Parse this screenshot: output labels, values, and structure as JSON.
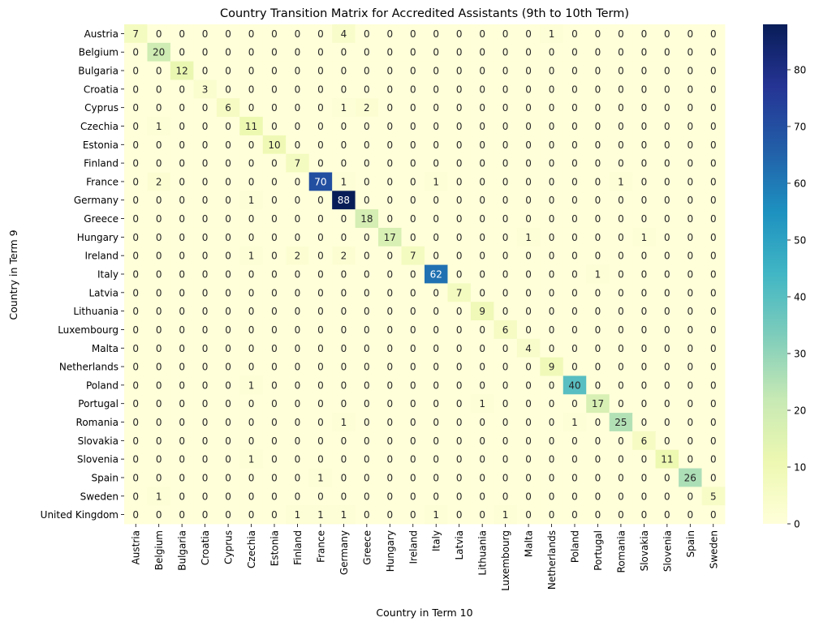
{
  "chart_data": {
    "type": "heatmap",
    "title": "Country Transition Matrix for Accredited Assistants (9th to 10th Term)",
    "xlabel": "Country in Term 10",
    "ylabel": "Country in Term 9",
    "x_categories": [
      "Austria",
      "Belgium",
      "Bulgaria",
      "Croatia",
      "Cyprus",
      "Czechia",
      "Estonia",
      "Finland",
      "France",
      "Germany",
      "Greece",
      "Hungary",
      "Ireland",
      "Italy",
      "Latvia",
      "Lithuania",
      "Luxembourg",
      "Malta",
      "Netherlands",
      "Poland",
      "Portugal",
      "Romania",
      "Slovakia",
      "Slovenia",
      "Spain",
      "Sweden"
    ],
    "y_categories": [
      "Austria",
      "Belgium",
      "Bulgaria",
      "Croatia",
      "Cyprus",
      "Czechia",
      "Estonia",
      "Finland",
      "France",
      "Germany",
      "Greece",
      "Hungary",
      "Ireland",
      "Italy",
      "Latvia",
      "Lithuania",
      "Luxembourg",
      "Malta",
      "Netherlands",
      "Poland",
      "Portugal",
      "Romania",
      "Slovakia",
      "Slovenia",
      "Spain",
      "Sweden",
      "United Kingdom"
    ],
    "values": [
      [
        7,
        0,
        0,
        0,
        0,
        0,
        0,
        0,
        0,
        4,
        0,
        0,
        0,
        0,
        0,
        0,
        0,
        0,
        1,
        0,
        0,
        0,
        0,
        0,
        0,
        0
      ],
      [
        0,
        20,
        0,
        0,
        0,
        0,
        0,
        0,
        0,
        0,
        0,
        0,
        0,
        0,
        0,
        0,
        0,
        0,
        0,
        0,
        0,
        0,
        0,
        0,
        0,
        0
      ],
      [
        0,
        0,
        12,
        0,
        0,
        0,
        0,
        0,
        0,
        0,
        0,
        0,
        0,
        0,
        0,
        0,
        0,
        0,
        0,
        0,
        0,
        0,
        0,
        0,
        0,
        0
      ],
      [
        0,
        0,
        0,
        3,
        0,
        0,
        0,
        0,
        0,
        0,
        0,
        0,
        0,
        0,
        0,
        0,
        0,
        0,
        0,
        0,
        0,
        0,
        0,
        0,
        0,
        0
      ],
      [
        0,
        0,
        0,
        0,
        6,
        0,
        0,
        0,
        0,
        1,
        2,
        0,
        0,
        0,
        0,
        0,
        0,
        0,
        0,
        0,
        0,
        0,
        0,
        0,
        0,
        0
      ],
      [
        0,
        1,
        0,
        0,
        0,
        11,
        0,
        0,
        0,
        0,
        0,
        0,
        0,
        0,
        0,
        0,
        0,
        0,
        0,
        0,
        0,
        0,
        0,
        0,
        0,
        0
      ],
      [
        0,
        0,
        0,
        0,
        0,
        0,
        10,
        0,
        0,
        0,
        0,
        0,
        0,
        0,
        0,
        0,
        0,
        0,
        0,
        0,
        0,
        0,
        0,
        0,
        0,
        0
      ],
      [
        0,
        0,
        0,
        0,
        0,
        0,
        0,
        7,
        0,
        0,
        0,
        0,
        0,
        0,
        0,
        0,
        0,
        0,
        0,
        0,
        0,
        0,
        0,
        0,
        0,
        0
      ],
      [
        0,
        2,
        0,
        0,
        0,
        0,
        0,
        0,
        70,
        1,
        0,
        0,
        0,
        1,
        0,
        0,
        0,
        0,
        0,
        0,
        0,
        1,
        0,
        0,
        0,
        0
      ],
      [
        0,
        0,
        0,
        0,
        0,
        1,
        0,
        0,
        0,
        88,
        0,
        0,
        0,
        0,
        0,
        0,
        0,
        0,
        0,
        0,
        0,
        0,
        0,
        0,
        0,
        0
      ],
      [
        0,
        0,
        0,
        0,
        0,
        0,
        0,
        0,
        0,
        0,
        18,
        0,
        0,
        0,
        0,
        0,
        0,
        0,
        0,
        0,
        0,
        0,
        0,
        0,
        0,
        0
      ],
      [
        0,
        0,
        0,
        0,
        0,
        0,
        0,
        0,
        0,
        0,
        0,
        17,
        0,
        0,
        0,
        0,
        0,
        1,
        0,
        0,
        0,
        0,
        1,
        0,
        0,
        0
      ],
      [
        0,
        0,
        0,
        0,
        0,
        1,
        0,
        2,
        0,
        2,
        0,
        0,
        7,
        0,
        0,
        0,
        0,
        0,
        0,
        0,
        0,
        0,
        0,
        0,
        0,
        0
      ],
      [
        0,
        0,
        0,
        0,
        0,
        0,
        0,
        0,
        0,
        0,
        0,
        0,
        0,
        62,
        0,
        0,
        0,
        0,
        0,
        0,
        1,
        0,
        0,
        0,
        0,
        0
      ],
      [
        0,
        0,
        0,
        0,
        0,
        0,
        0,
        0,
        0,
        0,
        0,
        0,
        0,
        0,
        7,
        0,
        0,
        0,
        0,
        0,
        0,
        0,
        0,
        0,
        0,
        0
      ],
      [
        0,
        0,
        0,
        0,
        0,
        0,
        0,
        0,
        0,
        0,
        0,
        0,
        0,
        0,
        0,
        9,
        0,
        0,
        0,
        0,
        0,
        0,
        0,
        0,
        0,
        0
      ],
      [
        0,
        0,
        0,
        0,
        0,
        0,
        0,
        0,
        0,
        0,
        0,
        0,
        0,
        0,
        0,
        0,
        6,
        0,
        0,
        0,
        0,
        0,
        0,
        0,
        0,
        0
      ],
      [
        0,
        0,
        0,
        0,
        0,
        0,
        0,
        0,
        0,
        0,
        0,
        0,
        0,
        0,
        0,
        0,
        0,
        4,
        0,
        0,
        0,
        0,
        0,
        0,
        0,
        0
      ],
      [
        0,
        0,
        0,
        0,
        0,
        0,
        0,
        0,
        0,
        0,
        0,
        0,
        0,
        0,
        0,
        0,
        0,
        0,
        9,
        0,
        0,
        0,
        0,
        0,
        0,
        0
      ],
      [
        0,
        0,
        0,
        0,
        0,
        1,
        0,
        0,
        0,
        0,
        0,
        0,
        0,
        0,
        0,
        0,
        0,
        0,
        0,
        40,
        0,
        0,
        0,
        0,
        0,
        0
      ],
      [
        0,
        0,
        0,
        0,
        0,
        0,
        0,
        0,
        0,
        0,
        0,
        0,
        0,
        0,
        0,
        1,
        0,
        0,
        0,
        0,
        17,
        0,
        0,
        0,
        0,
        0
      ],
      [
        0,
        0,
        0,
        0,
        0,
        0,
        0,
        0,
        0,
        1,
        0,
        0,
        0,
        0,
        0,
        0,
        0,
        0,
        0,
        1,
        0,
        25,
        0,
        0,
        0,
        0
      ],
      [
        0,
        0,
        0,
        0,
        0,
        0,
        0,
        0,
        0,
        0,
        0,
        0,
        0,
        0,
        0,
        0,
        0,
        0,
        0,
        0,
        0,
        0,
        6,
        0,
        0,
        0
      ],
      [
        0,
        0,
        0,
        0,
        0,
        1,
        0,
        0,
        0,
        0,
        0,
        0,
        0,
        0,
        0,
        0,
        0,
        0,
        0,
        0,
        0,
        0,
        0,
        11,
        0,
        0
      ],
      [
        0,
        0,
        0,
        0,
        0,
        0,
        0,
        0,
        1,
        0,
        0,
        0,
        0,
        0,
        0,
        0,
        0,
        0,
        0,
        0,
        0,
        0,
        0,
        0,
        26,
        0
      ],
      [
        0,
        1,
        0,
        0,
        0,
        0,
        0,
        0,
        0,
        0,
        0,
        0,
        0,
        0,
        0,
        0,
        0,
        0,
        0,
        0,
        0,
        0,
        0,
        0,
        0,
        5
      ],
      [
        0,
        0,
        0,
        0,
        0,
        0,
        0,
        1,
        1,
        1,
        0,
        0,
        0,
        1,
        0,
        0,
        1,
        0,
        0,
        0,
        0,
        0,
        0,
        0,
        0,
        0
      ]
    ],
    "colormap": "YlGnBu",
    "vmin": 0,
    "vmax": 88,
    "colorbar_ticks": [
      0,
      10,
      20,
      30,
      40,
      50,
      60,
      70,
      80
    ],
    "colors": {
      "low": "#ffffd9",
      "high": "#081d58"
    }
  }
}
